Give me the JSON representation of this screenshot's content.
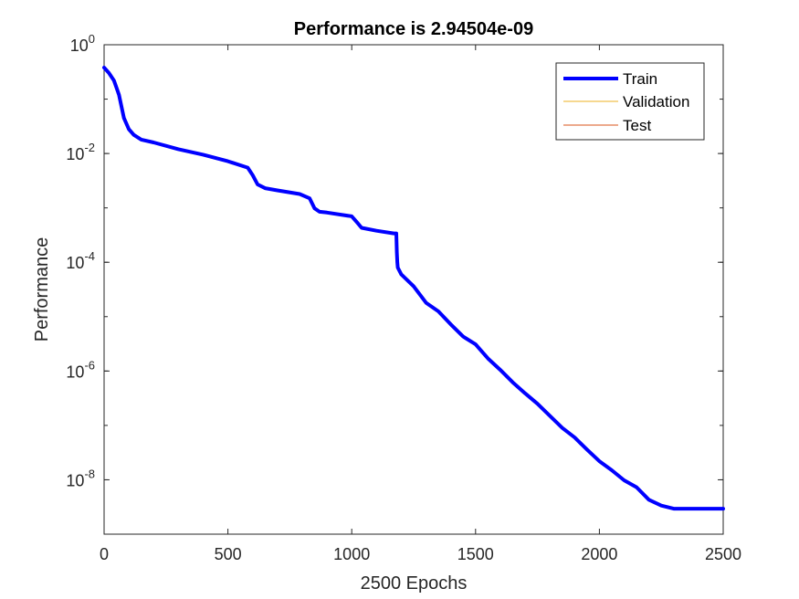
{
  "chart_data": {
    "type": "line",
    "title": "Performance is 2.94504e-09",
    "xlabel": "2500 Epochs",
    "ylabel": "Performance",
    "xlim": [
      0,
      2500
    ],
    "ylim": [
      1e-09,
      1
    ],
    "yscale": "log",
    "grid": false,
    "legend_position": "top-right",
    "x_ticks": [
      0,
      500,
      1000,
      1500,
      2000,
      2500
    ],
    "x_tick_labels": [
      "0",
      "500",
      "1000",
      "1500",
      "2000",
      "2500"
    ],
    "y_ticks": [
      1e-08,
      1e-06,
      0.0001,
      0.01,
      1
    ],
    "y_tick_labels": [
      {
        "base": "10",
        "exp": "-8"
      },
      {
        "base": "10",
        "exp": "-6"
      },
      {
        "base": "10",
        "exp": "-4"
      },
      {
        "base": "10",
        "exp": "-2"
      },
      {
        "base": "10",
        "exp": "0"
      }
    ],
    "series": [
      {
        "name": "Train",
        "color": "#0000ff",
        "x": [
          0,
          20,
          40,
          60,
          80,
          100,
          120,
          150,
          200,
          300,
          400,
          500,
          580,
          600,
          620,
          650,
          700,
          790,
          830,
          850,
          870,
          900,
          1000,
          1020,
          1040,
          1100,
          1170,
          1180,
          1182,
          1184,
          1186,
          1200,
          1250,
          1300,
          1350,
          1400,
          1450,
          1500,
          1550,
          1600,
          1650,
          1700,
          1750,
          1800,
          1850,
          1900,
          1950,
          2000,
          2050,
          2100,
          2150,
          2200,
          2250,
          2300,
          2350,
          2400,
          2450,
          2500
        ],
        "y": [
          0.38,
          0.3,
          0.22,
          0.12,
          0.045,
          0.028,
          0.022,
          0.018,
          0.016,
          0.012,
          0.0095,
          0.0072,
          0.0055,
          0.004,
          0.0027,
          0.0023,
          0.0021,
          0.0018,
          0.0015,
          0.00098,
          0.00085,
          0.00082,
          0.0007,
          0.00055,
          0.00043,
          0.00038,
          0.00034,
          0.00034,
          0.00015,
          0.0001,
          8e-05,
          6e-05,
          3.6e-05,
          1.8e-05,
          1.25e-05,
          7.2e-06,
          4.3e-06,
          3.1e-06,
          1.7e-06,
          1.05e-06,
          6.2e-07,
          3.9e-07,
          2.5e-07,
          1.5e-07,
          9e-08,
          6e-08,
          3.6e-08,
          2.2e-08,
          1.5e-08,
          9.8e-09,
          7.3e-09,
          4.3e-09,
          3.35e-09,
          2.94504e-09,
          2.94504e-09,
          2.94504e-09,
          2.94504e-09,
          2.94504e-09
        ]
      },
      {
        "name": "Validation",
        "color": "#edb120",
        "x": [],
        "y": []
      },
      {
        "name": "Test",
        "color": "#d95319",
        "x": [],
        "y": []
      }
    ]
  }
}
